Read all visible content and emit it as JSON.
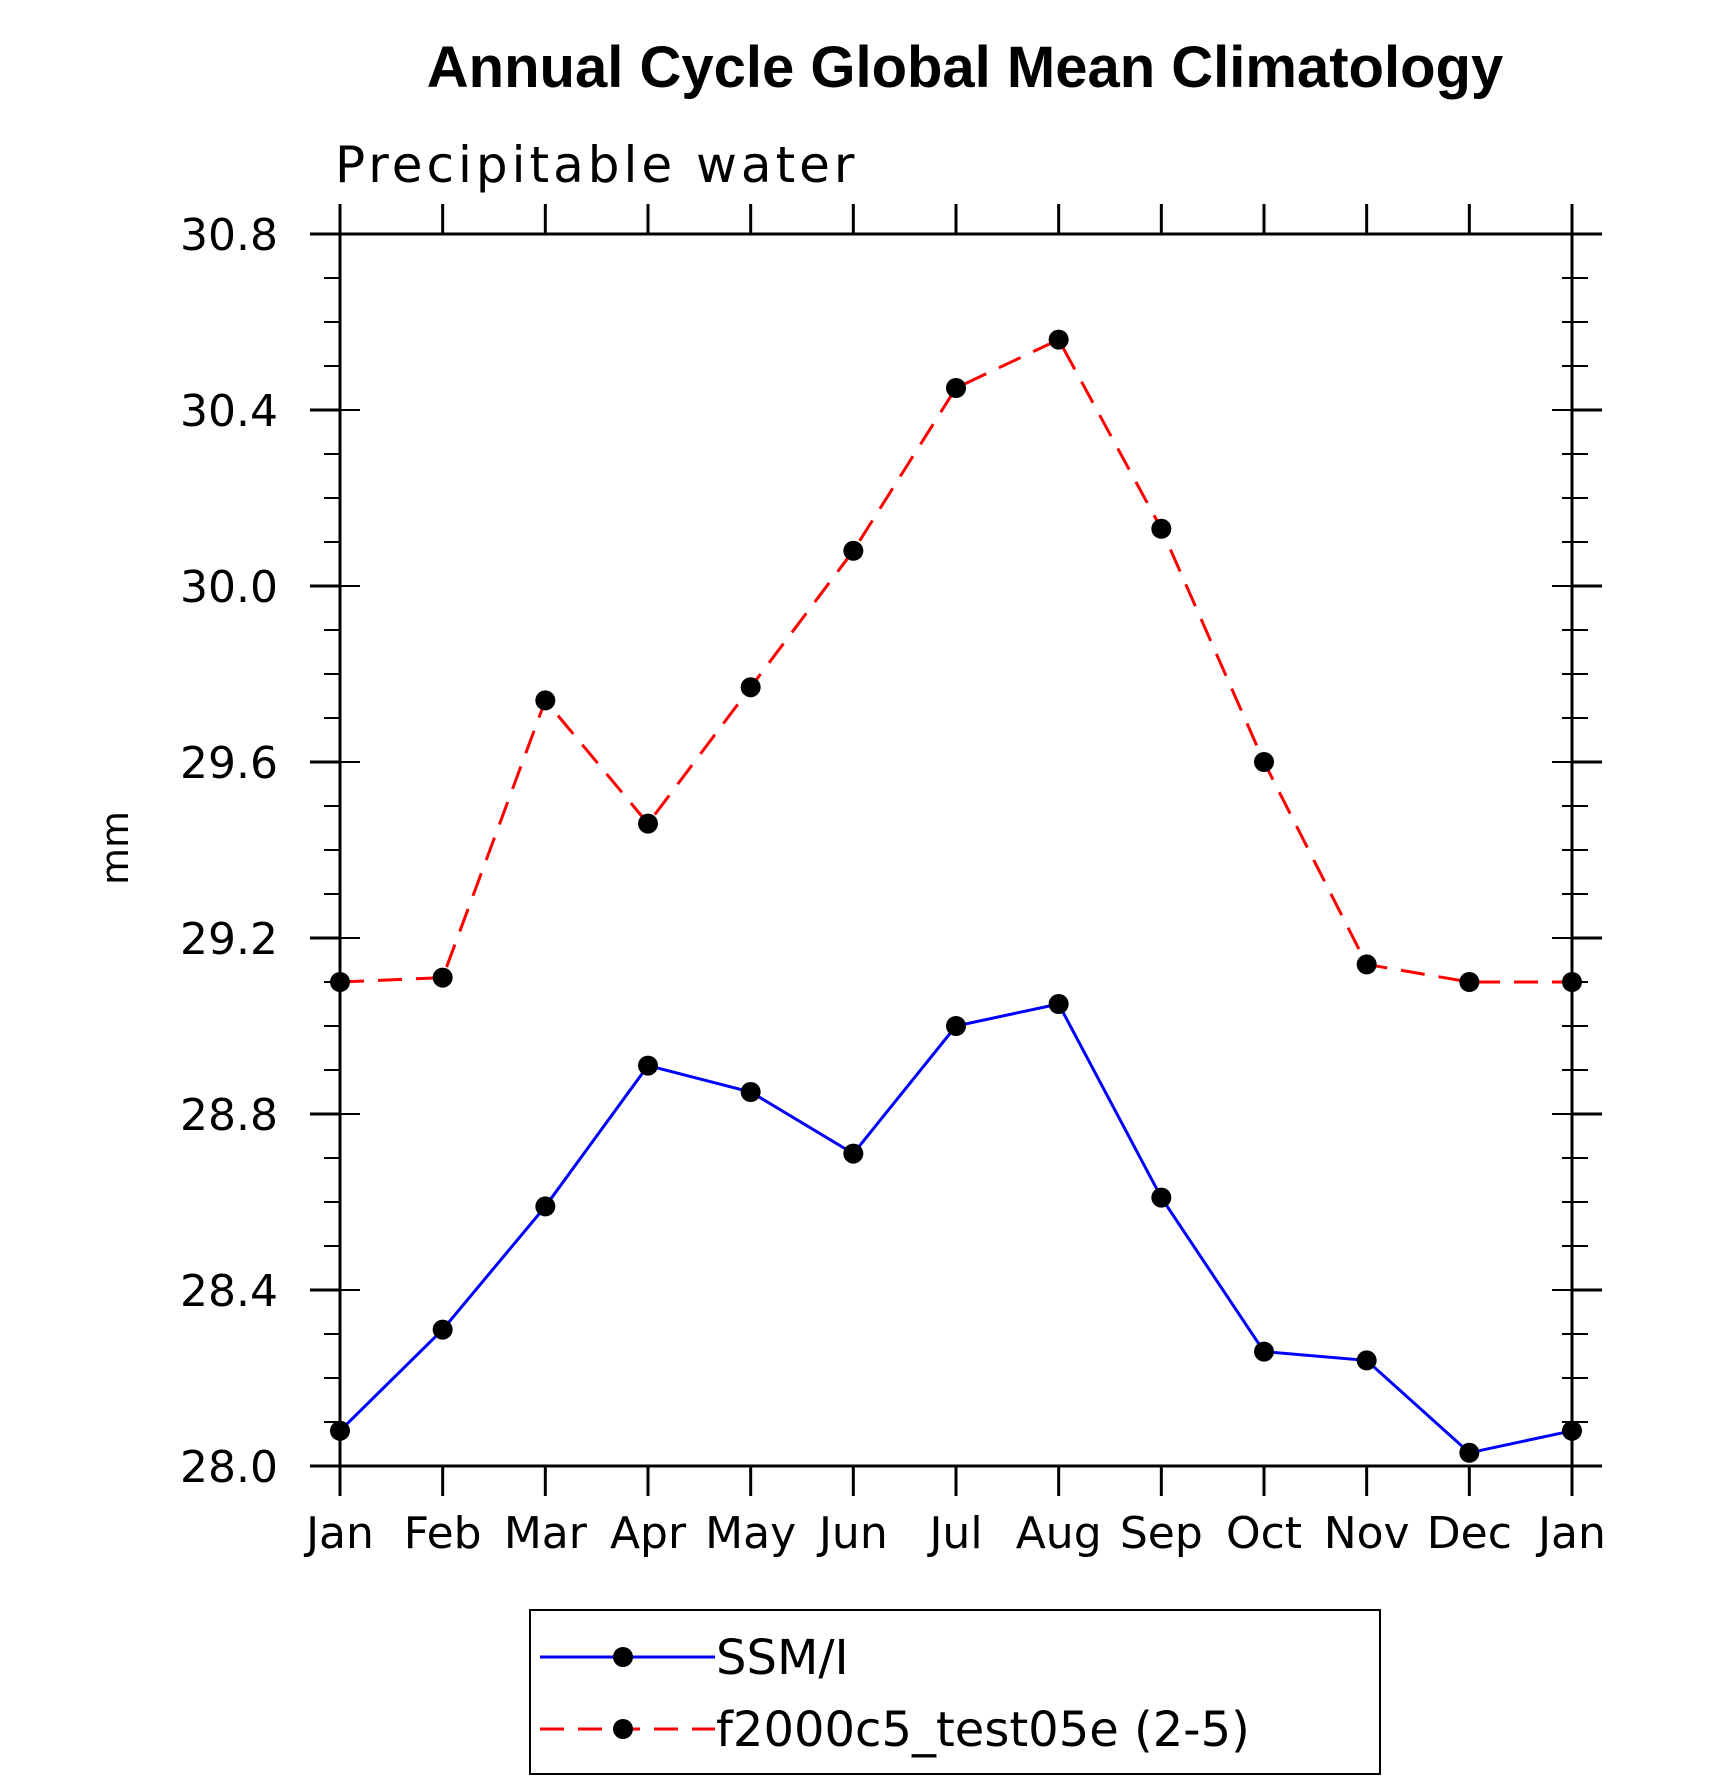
{
  "chart_data": {
    "type": "line",
    "title": "Annual Cycle Global Mean Climatology",
    "subtitle": "Precipitable water",
    "xlabel": "",
    "ylabel": "mm",
    "categories": [
      "Jan",
      "Feb",
      "Mar",
      "Apr",
      "May",
      "Jun",
      "Jul",
      "Aug",
      "Sep",
      "Oct",
      "Nov",
      "Dec",
      "Jan"
    ],
    "ylim": [
      28.0,
      30.8
    ],
    "yticks": [
      "28.0",
      "28.4",
      "28.8",
      "29.2",
      "29.6",
      "30.0",
      "30.4",
      "30.8"
    ],
    "y_minor_step": 0.1,
    "grid": false,
    "legend_position": "bottom",
    "series": [
      {
        "name": "SSM/I",
        "color": "#0000ff",
        "dash": "solid",
        "marker": "filled-circle",
        "values": [
          28.08,
          28.31,
          28.59,
          28.91,
          28.85,
          28.71,
          29.0,
          29.05,
          28.61,
          28.26,
          28.24,
          28.03,
          28.08
        ]
      },
      {
        "name": "f2000c5_test05e (2-5)",
        "color": "#ff0000",
        "dash": "dashed",
        "marker": "filled-circle",
        "values": [
          29.1,
          29.11,
          29.74,
          29.46,
          29.77,
          30.08,
          30.45,
          30.56,
          30.13,
          29.6,
          29.14,
          29.1,
          29.1
        ]
      }
    ]
  }
}
